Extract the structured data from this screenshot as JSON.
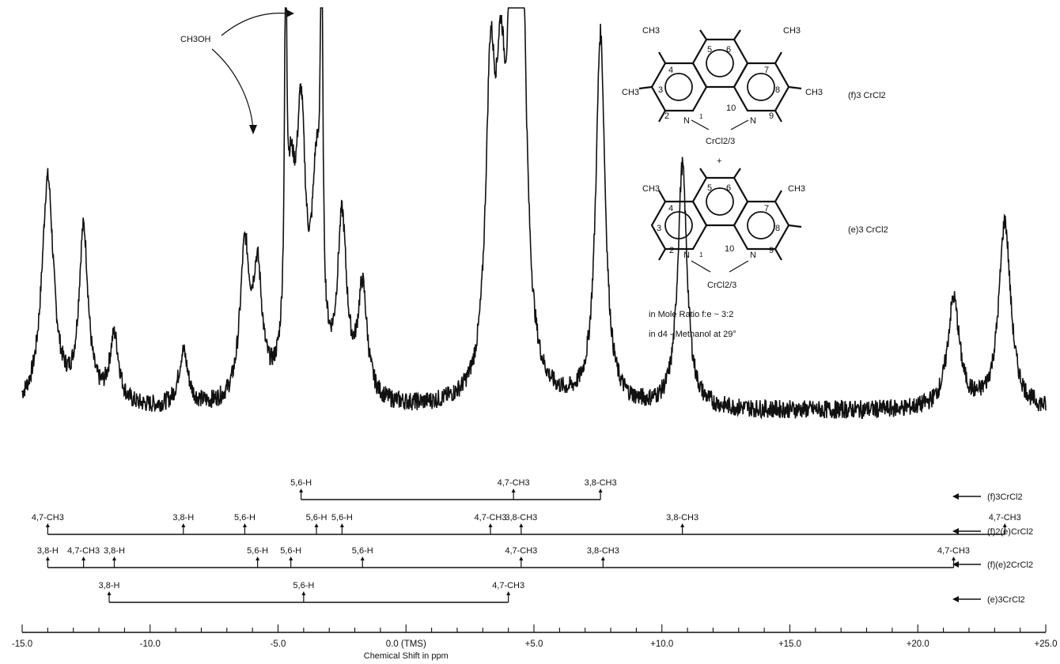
{
  "chart_data": {
    "type": "line",
    "xlabel": "Chemical Shift in ppm",
    "xlim": [
      -15.0,
      25.0
    ],
    "x_ticks": [
      "-15.0",
      "-10.0",
      "-5.0",
      "0.0 (TMS)",
      "+5.0",
      "+10.0",
      "+15.0",
      "+20.0",
      "+25.0"
    ],
    "x_tick_values": [
      -15,
      -10,
      -5,
      0,
      5,
      10,
      15,
      20,
      25
    ],
    "grid": false,
    "spectrum_baseline": 0.12,
    "spectrum_peaks": [
      {
        "x": -14.0,
        "height": 0.62
      },
      {
        "x": -12.6,
        "height": 0.5
      },
      {
        "x": -11.4,
        "height": 0.27
      },
      {
        "x": -8.7,
        "height": 0.24
      },
      {
        "x": -6.3,
        "height": 0.44
      },
      {
        "x": -5.8,
        "height": 0.38
      },
      {
        "x": -4.7,
        "height": 0.9
      },
      {
        "x": -4.5,
        "height": 0.49
      },
      {
        "x": -4.1,
        "height": 0.66
      },
      {
        "x": -3.5,
        "height": 0.55
      },
      {
        "x": -3.3,
        "height": 1.0
      },
      {
        "x": -2.5,
        "height": 0.5
      },
      {
        "x": -1.7,
        "height": 0.36
      },
      {
        "x": 3.3,
        "height": 0.75
      },
      {
        "x": 3.7,
        "height": 0.62
      },
      {
        "x": 4.2,
        "height": 1.02
      },
      {
        "x": 4.5,
        "height": 1.02
      },
      {
        "x": 7.6,
        "height": 0.93
      },
      {
        "x": 10.8,
        "height": 0.65
      },
      {
        "x": 21.4,
        "height": 0.36
      },
      {
        "x": 23.4,
        "height": 0.53
      }
    ],
    "annotations": {
      "solvent": "CH3OH",
      "mole_ratio": "in Mole Ratio f:e ~ 3:2",
      "solvent_note": "in d4 - Methanol at 29°",
      "plus": "+"
    },
    "structures": [
      {
        "label": "(f)3 CrCl2",
        "metal": "CrCl2/3",
        "methyls": [
          "CH3",
          "CH3",
          "CH3",
          "CH3"
        ],
        "positions": [
          "1",
          "2",
          "3",
          "4",
          "5",
          "6",
          "7",
          "8",
          "9",
          "10"
        ],
        "nitrogens": [
          "N",
          "N"
        ]
      },
      {
        "label": "(e)3 CrCl2",
        "metal": "CrCl2/3",
        "methyls": [
          "CH3",
          "CH3"
        ],
        "positions": [
          "1",
          "2",
          "3",
          "4",
          "5",
          "6",
          "7",
          "8",
          "9",
          "10"
        ],
        "nitrogens": [
          "N",
          "N"
        ]
      }
    ],
    "assignment_rows": [
      {
        "species": "(f)3CrCl2",
        "species_label": "(f)3CrCl2",
        "peaks": [
          {
            "label": "5,6-H",
            "x": -4.1
          },
          {
            "label": "4,7-CH3",
            "x": 4.2
          },
          {
            "label": "3,8-CH3",
            "x": 7.6
          }
        ]
      },
      {
        "species": "(f)2(e)CrCl2",
        "species_label": "(f)2(e)CrCl2",
        "peaks": [
          {
            "label": "4,7-CH3",
            "x": -14.0
          },
          {
            "label": "3,8-H",
            "x": -8.7
          },
          {
            "label": "5,6-H",
            "x": -6.3
          },
          {
            "label": "5,6-H",
            "x": -3.5
          },
          {
            "label": "5,6-H",
            "x": -2.5
          },
          {
            "label": "4,7-CH3",
            "x": 3.3
          },
          {
            "label": "3,8-CH3",
            "x": 4.5
          },
          {
            "label": "3,8-CH3",
            "x": 10.8
          },
          {
            "label": "4,7-CH3",
            "x": 23.4
          }
        ]
      },
      {
        "species": "(f)(e)2CrCl2",
        "species_label": "(f)(e)2CrCl2",
        "peaks": [
          {
            "label": "3,8-H",
            "x": -14.0
          },
          {
            "label": "4,7-CH3",
            "x": -12.6
          },
          {
            "label": "3,8-H",
            "x": -11.4
          },
          {
            "label": "5,6-H",
            "x": -5.8
          },
          {
            "label": "5,6-H",
            "x": -4.5
          },
          {
            "label": "5,6-H",
            "x": -1.7
          },
          {
            "label": "4,7-CH3",
            "x": 4.5
          },
          {
            "label": "3,8-CH3",
            "x": 7.7
          },
          {
            "label": "4,7-CH3",
            "x": 21.4
          }
        ]
      },
      {
        "species": "(e)3CrCl2",
        "species_label": "(e)3CrCl2",
        "peaks": [
          {
            "label": "3,8-H",
            "x": -11.6
          },
          {
            "label": "5,6-H",
            "x": -4.0
          },
          {
            "label": "4,7-CH3",
            "x": 4.0
          }
        ]
      }
    ]
  }
}
